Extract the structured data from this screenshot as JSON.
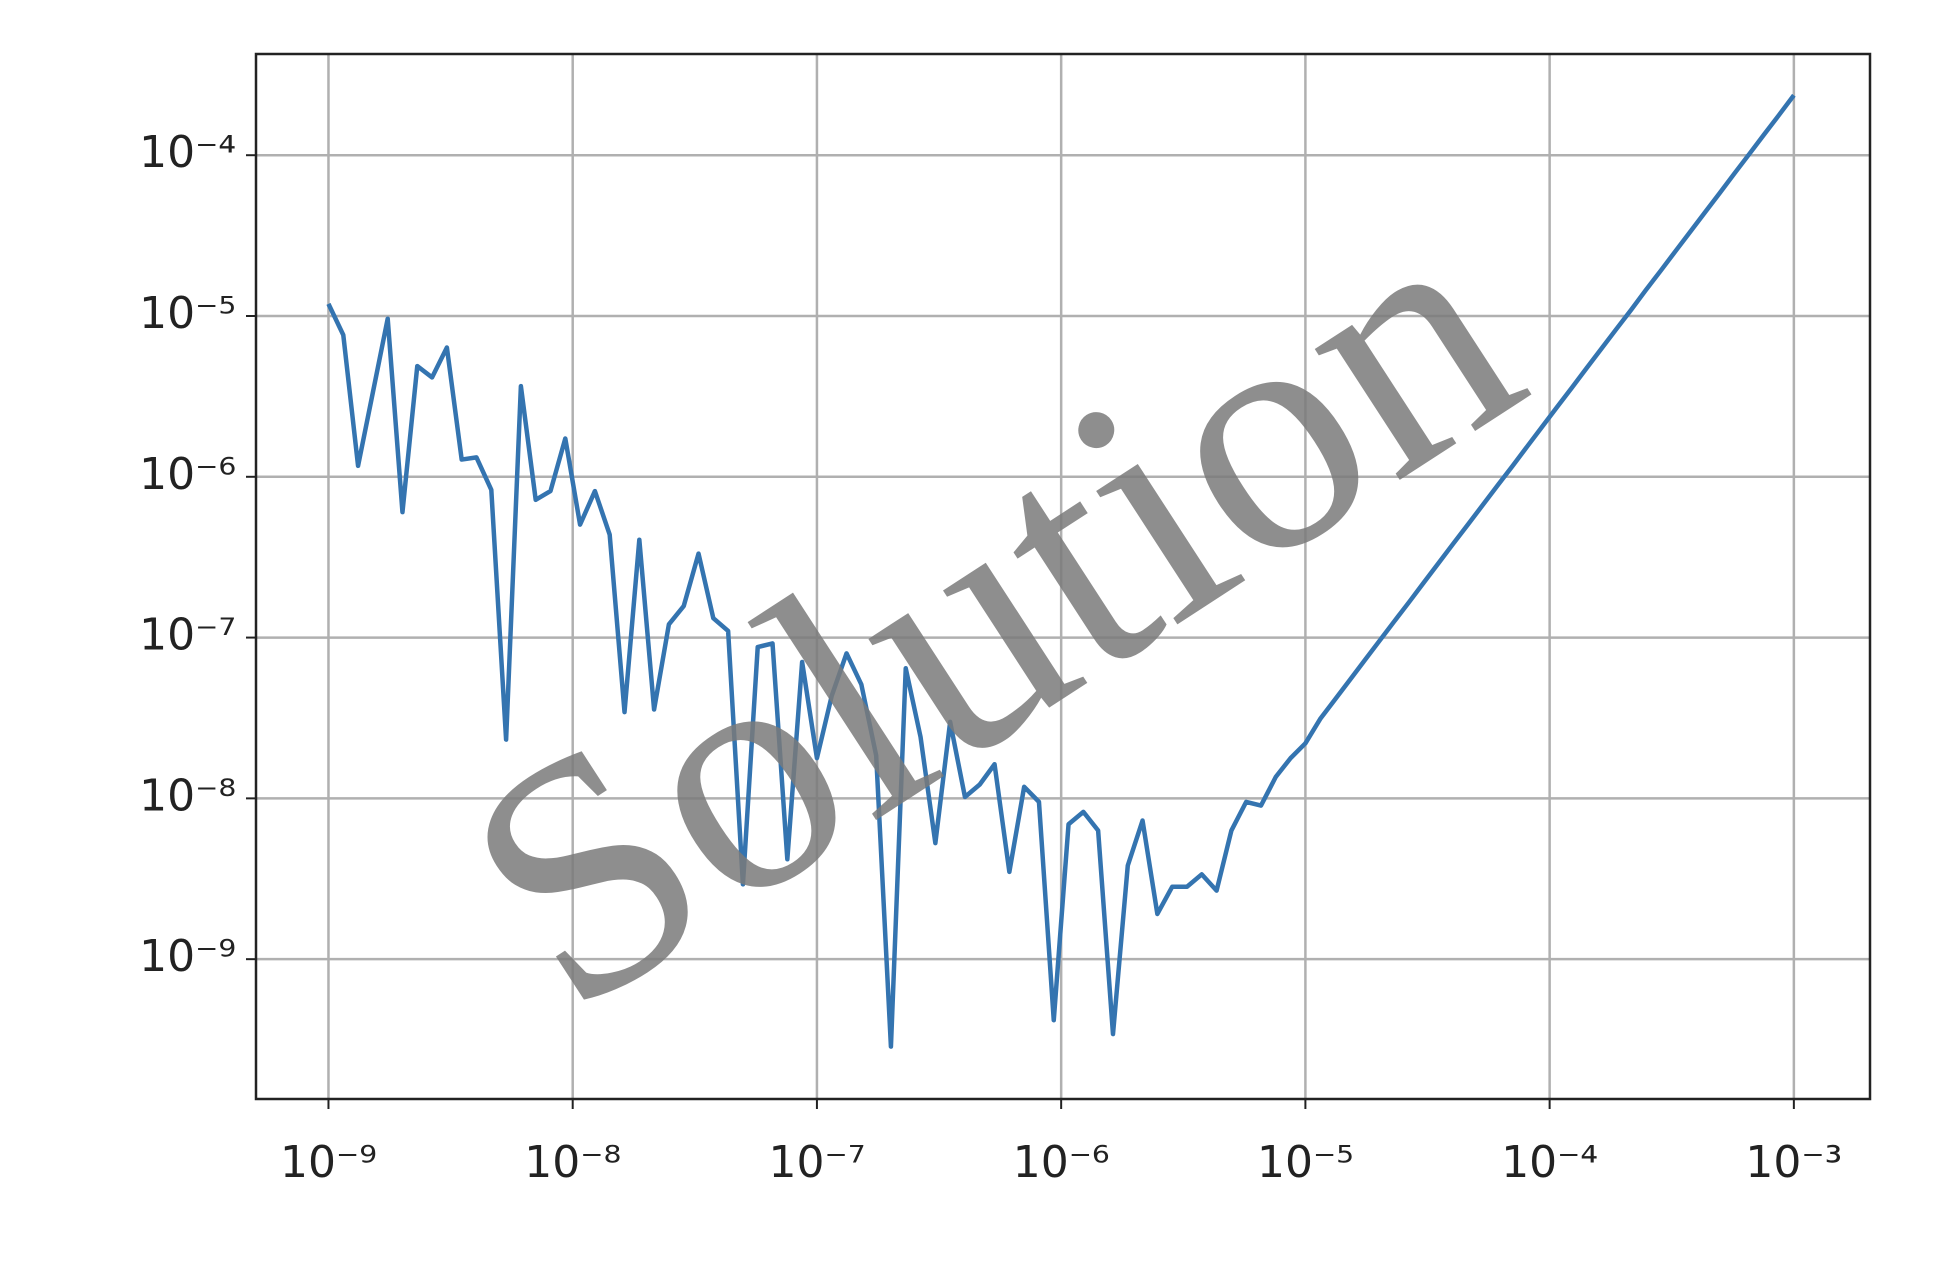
{
  "chart_data": {
    "type": "line",
    "log_x": true,
    "log_y": true,
    "grid": true,
    "color": "#3474b0",
    "watermark": "Solution",
    "x": [
      1e-09,
      1.15e-09,
      1.322e-09,
      1.52e-09,
      1.748e-09,
      2.009e-09,
      2.31e-09,
      2.656e-09,
      3.054e-09,
      3.511e-09,
      4.037e-09,
      4.642e-09,
      5.337e-09,
      6.136e-09,
      7.055e-09,
      8.111e-09,
      9.326e-09,
      1.072e-08,
      1.233e-08,
      1.417e-08,
      1.63e-08,
      1.874e-08,
      2.154e-08,
      2.477e-08,
      2.848e-08,
      3.275e-08,
      3.765e-08,
      4.329e-08,
      4.977e-08,
      5.722e-08,
      6.579e-08,
      7.565e-08,
      8.697e-08,
      1e-07,
      1.15e-07,
      1.322e-07,
      1.52e-07,
      1.748e-07,
      2.009e-07,
      2.31e-07,
      2.656e-07,
      3.054e-07,
      3.511e-07,
      4.037e-07,
      4.642e-07,
      5.337e-07,
      6.136e-07,
      7.055e-07,
      8.111e-07,
      9.326e-07,
      1.072e-06,
      1.233e-06,
      1.417e-06,
      1.63e-06,
      1.874e-06,
      2.154e-06,
      2.477e-06,
      2.848e-06,
      3.275e-06,
      3.765e-06,
      4.329e-06,
      4.977e-06,
      5.722e-06,
      6.579e-06,
      7.565e-06,
      8.697e-06,
      1e-05,
      1.15e-05,
      1.322e-05,
      1.52e-05,
      1.748e-05,
      2.009e-05,
      2.31e-05,
      2.656e-05,
      3.054e-05,
      3.511e-05,
      4.037e-05,
      4.642e-05,
      5.337e-05,
      6.136e-05,
      7.055e-05,
      8.111e-05,
      9.326e-05,
      0.0001072,
      0.0001233,
      0.0001417,
      0.000163,
      0.0001874,
      0.0002154,
      0.0002477,
      0.0002848,
      0.0003275,
      0.0003765,
      0.0004329,
      0.0004977,
      0.0005722,
      0.0006579,
      0.0007565,
      0.0008697,
      0.001
    ],
    "values": [
      1.19e-05,
      7.62e-06,
      1.17e-06,
      3.35e-06,
      9.62e-06,
      6.03e-07,
      4.88e-06,
      4.15e-06,
      6.37e-06,
      1.28e-06,
      1.32e-06,
      8.3e-07,
      2.32e-08,
      3.66e-06,
      7.19e-07,
      8.15e-07,
      1.73e-06,
      5.04e-07,
      8.15e-07,
      4.37e-07,
      3.44e-08,
      4.06e-07,
      3.57e-08,
      1.21e-07,
      1.57e-07,
      3.33e-07,
      1.32e-07,
      1.1e-07,
      2.92e-09,
      8.73e-08,
      9.2e-08,
      4.18e-09,
      7.05e-08,
      1.78e-08,
      4.35e-08,
      7.98e-08,
      5.11e-08,
      1.85e-08,
      2.86e-10,
      6.44e-08,
      2.41e-08,
      5.27e-09,
      2.99e-08,
      1.02e-08,
      1.22e-08,
      1.63e-08,
      3.49e-09,
      1.18e-08,
      9.51e-09,
      4.17e-10,
      6.9e-09,
      8.24e-09,
      6.31e-09,
      3.42e-10,
      3.82e-09,
      7.28e-09,
      1.91e-09,
      2.82e-09,
      2.82e-09,
      3.37e-09,
      2.67e-09,
      6.31e-09,
      9.51e-09,
      9.02e-09,
      1.36e-08,
      1.78e-08,
      2.2e-08,
      3.12e-08,
      4.12e-08,
      5.45e-08,
      7.21e-08,
      9.53e-08,
      1.26e-07,
      1.66e-07,
      2.2e-07,
      2.91e-07,
      3.85e-07,
      5.08e-07,
      6.71e-07,
      8.87e-07,
      1.17e-06,
      1.55e-06,
      2.05e-06,
      2.71e-06,
      3.58e-06,
      4.74e-06,
      6.27e-06,
      8.28e-06,
      1.09e-05,
      1.45e-05,
      1.91e-05,
      2.53e-05,
      3.34e-05,
      4.42e-05,
      5.83e-05,
      7.73e-05,
      0.000102,
      0.000135,
      0.000178,
      0.000236
    ],
    "xlim": [
      5.05e-10,
      0.00205
    ],
    "ylim": [
      1.35e-10,
      0.000426
    ],
    "xticks": [
      {
        "value": 1e-09,
        "label": "10⁻⁹"
      },
      {
        "value": 1e-08,
        "label": "10⁻⁸"
      },
      {
        "value": 1e-07,
        "label": "10⁻⁷"
      },
      {
        "value": 1e-06,
        "label": "10⁻⁶"
      },
      {
        "value": 1e-05,
        "label": "10⁻⁵"
      },
      {
        "value": 0.0001,
        "label": "10⁻⁴"
      },
      {
        "value": 0.001,
        "label": "10⁻³"
      }
    ],
    "yticks": [
      {
        "value": 1e-09,
        "label": "10⁻⁹"
      },
      {
        "value": 1e-08,
        "label": "10⁻⁸"
      },
      {
        "value": 1e-07,
        "label": "10⁻⁷"
      },
      {
        "value": 1e-06,
        "label": "10⁻⁶"
      },
      {
        "value": 1e-05,
        "label": "10⁻⁵"
      },
      {
        "value": 0.0001,
        "label": "10⁻⁴"
      }
    ]
  }
}
